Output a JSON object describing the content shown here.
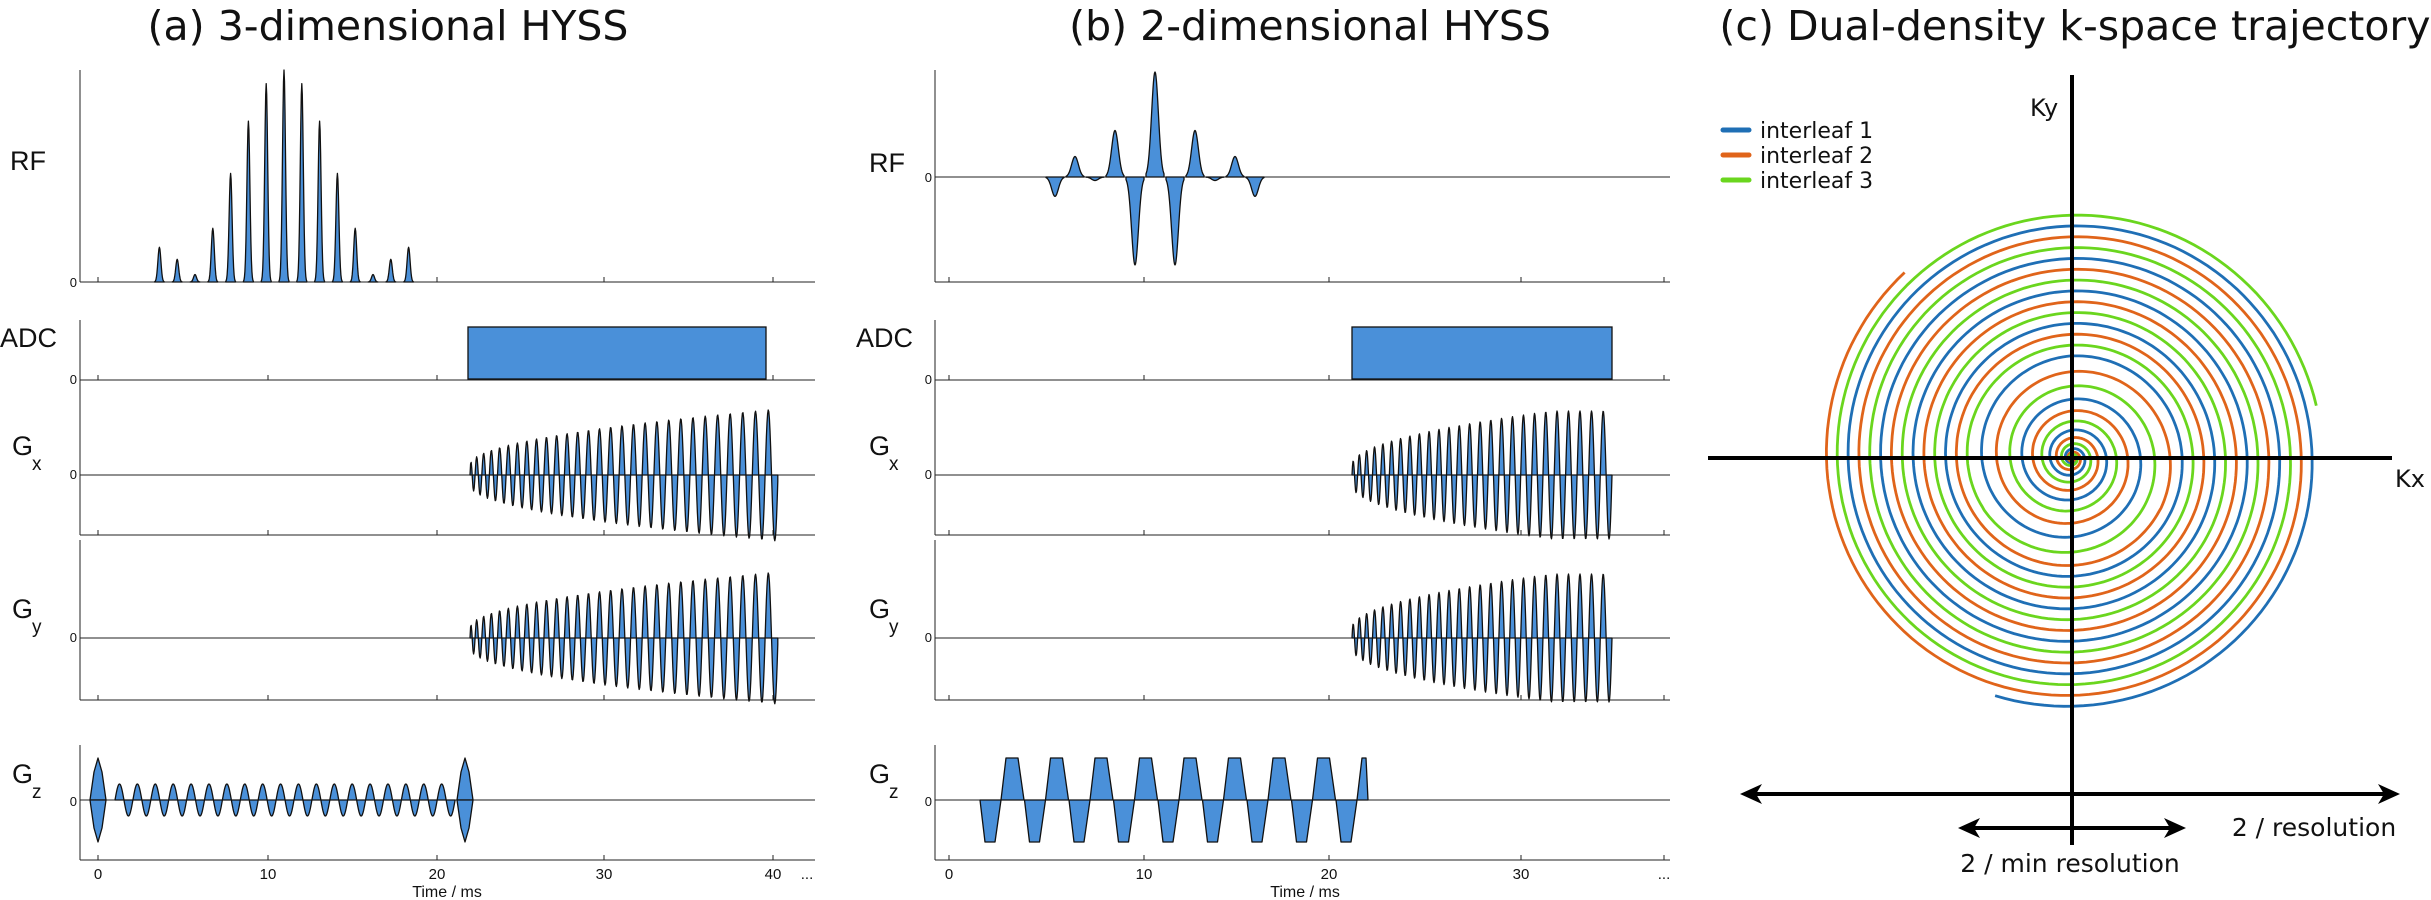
{
  "panels": {
    "a": {
      "title": "(a) 3-dimensional HYSS",
      "rows": [
        {
          "label": "RF",
          "sub": "",
          "zero": "0"
        },
        {
          "label": "ADC",
          "sub": "",
          "zero": "0"
        },
        {
          "label": "G",
          "sub": "x",
          "zero": "0"
        },
        {
          "label": "G",
          "sub": "y",
          "zero": "0"
        },
        {
          "label": "G",
          "sub": "z",
          "zero": "0"
        }
      ],
      "ticks": [
        "0",
        "10",
        "20",
        "30",
        "40",
        "..."
      ],
      "xlabel": "Time / ms"
    },
    "b": {
      "title": "(b) 2-dimensional HYSS",
      "rows": [
        {
          "label": "RF",
          "sub": "",
          "zero": "0"
        },
        {
          "label": "ADC",
          "sub": "",
          "zero": "0"
        },
        {
          "label": "G",
          "sub": "x",
          "zero": "0"
        },
        {
          "label": "G",
          "sub": "y",
          "zero": "0"
        },
        {
          "label": "G",
          "sub": "z",
          "zero": "0"
        }
      ],
      "ticks": [
        "0",
        "10",
        "20",
        "30",
        "..."
      ],
      "xlabel": "Time / ms"
    },
    "c": {
      "title": "(c) Dual-density k-space trajectory",
      "legend": [
        {
          "name": "interleaf 1",
          "color": "#1f6fb5"
        },
        {
          "name": "interleaf 2",
          "color": "#e0641a"
        },
        {
          "name": "interleaf 3",
          "color": "#6ad61e"
        }
      ],
      "axis_x": "Kx",
      "axis_y": "Ky",
      "arrow_inner": "2 / min resolution",
      "arrow_outer": "2 / resolution"
    }
  },
  "colors": {
    "waveform_fill": "#4a90d9",
    "outline": "#111111"
  }
}
